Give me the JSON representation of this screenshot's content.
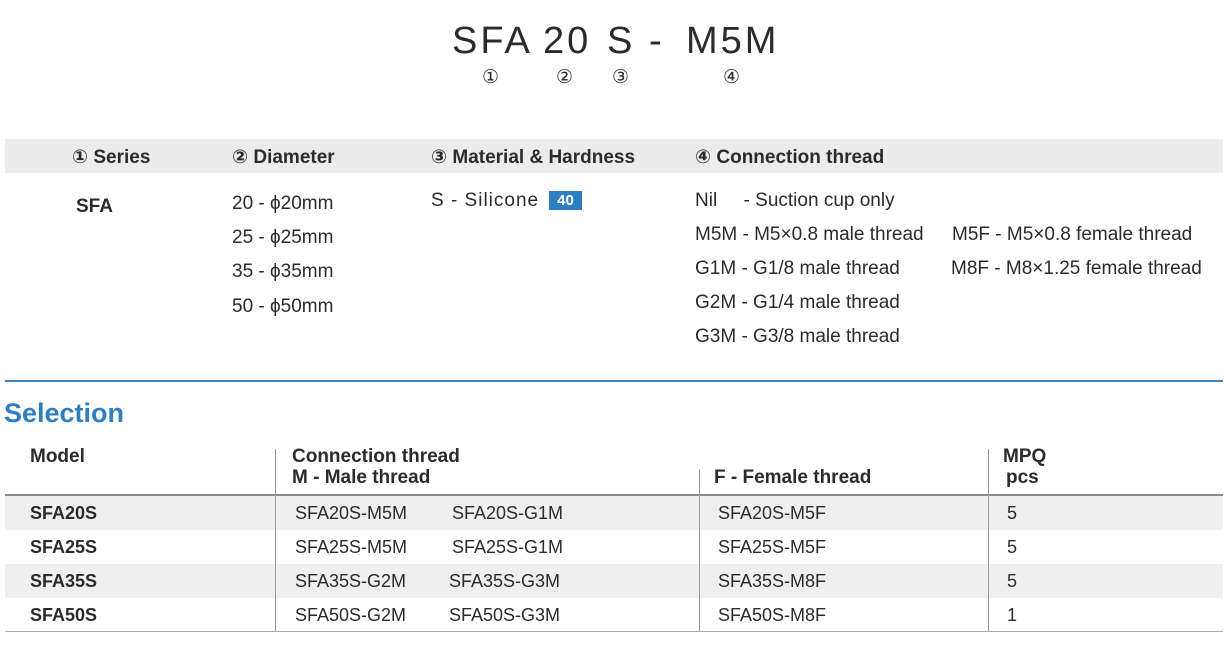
{
  "code": {
    "parts": [
      "SFA",
      "20",
      "S",
      "-",
      "M5M"
    ],
    "numbers": [
      "①",
      "②",
      "③",
      "④"
    ]
  },
  "spec": {
    "headers": [
      "① Series",
      "② Diameter",
      "③ Material & Hardness",
      "④  Connection thread"
    ],
    "series": "SFA",
    "diameters": [
      "20 - ϕ20mm",
      "25 - ϕ25mm",
      "35 - ϕ35mm",
      "50 - ϕ50mm"
    ],
    "material": "S - Silicone",
    "hardness": "40",
    "threads_male": [
      "Nil     - Suction cup only",
      "M5M - M5×0.8 male thread",
      "G1M - G1/8 male thread",
      "G2M - G1/4 male thread",
      "G3M - G3/8 male thread"
    ],
    "threads_female": [
      "M5F - M5×0.8 female thread",
      "M8F - M8×1.25 female thread"
    ]
  },
  "selection": {
    "title": "Selection",
    "headers": {
      "model": "Model",
      "connection": "Connection thread",
      "male": "M - Male thread",
      "female": "F - Female thread",
      "mpq": "MPQ",
      "pcs": "pcs"
    },
    "rows": [
      {
        "model": "SFA20S",
        "male1": "SFA20S-M5M",
        "male2": "SFA20S-G1M",
        "female": "SFA20S-M5F",
        "mpq": "5"
      },
      {
        "model": "SFA25S",
        "male1": "SFA25S-M5M",
        "male2": "SFA25S-G1M",
        "female": "SFA25S-M5F",
        "mpq": "5"
      },
      {
        "model": "SFA35S",
        "male1": "SFA35S-G2M",
        "male2": "SFA35S-G3M",
        "female": "SFA35S-M8F",
        "mpq": "5"
      },
      {
        "model": "SFA50S",
        "male1": "SFA50S-G2M",
        "male2": "SFA50S-G3M",
        "female": "SFA50S-M8F",
        "mpq": "1"
      }
    ]
  }
}
